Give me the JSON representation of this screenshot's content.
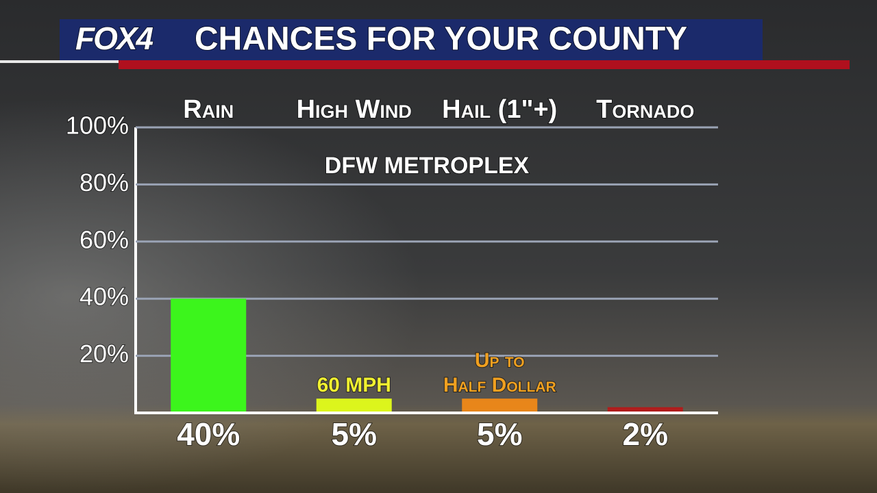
{
  "logo": "FOX4",
  "chart_data": {
    "type": "bar",
    "title": "CHANCES FOR YOUR COUNTY",
    "subtitle": "DFW METROPLEX",
    "categories": [
      "Rain",
      "High Wind",
      "Hail (1\"+)",
      "Tornado"
    ],
    "values": [
      40,
      5,
      5,
      2
    ],
    "value_labels": [
      "40%",
      "5%",
      "5%",
      "2%"
    ],
    "colors": [
      "#3cf51c",
      "#dcf51c",
      "#e8861a",
      "#b01c1c"
    ],
    "annotations": [
      null,
      [
        "60 MPH"
      ],
      [
        "Up to",
        "Half Dollar"
      ],
      null
    ],
    "annotation_colors": [
      null,
      "#f0f030",
      "#f0a020",
      null
    ],
    "ylim": [
      0,
      100
    ],
    "yticks": [
      {
        "value": 20,
        "label": "20%"
      },
      {
        "value": 40,
        "label": "40%"
      },
      {
        "value": 60,
        "label": "60%"
      },
      {
        "value": 80,
        "label": "80%"
      },
      {
        "value": 100,
        "label": "100%"
      }
    ],
    "grid": true
  }
}
